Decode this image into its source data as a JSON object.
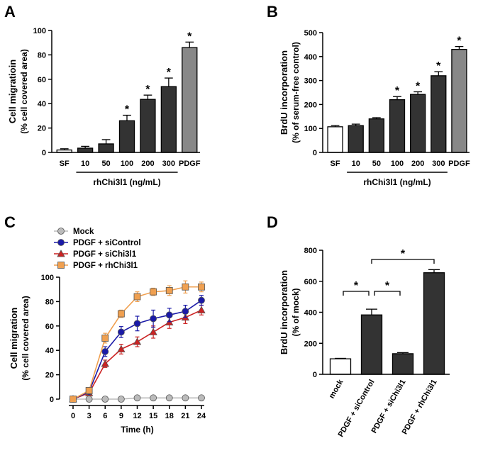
{
  "chart_data": [
    {
      "panel": "A",
      "type": "bar",
      "categories": [
        "SF",
        "10",
        "50",
        "100",
        "200",
        "300",
        "PDGF"
      ],
      "values": [
        2,
        3.5,
        7,
        26,
        43.5,
        54,
        86
      ],
      "errors": [
        1,
        1.5,
        3.5,
        4.5,
        3.5,
        7,
        4.5
      ],
      "bar_colors": [
        "#ffffff",
        "#333333",
        "#333333",
        "#333333",
        "#333333",
        "#333333",
        "#888888"
      ],
      "significant": [
        false,
        false,
        false,
        true,
        true,
        true,
        true
      ],
      "sig_marker": "*",
      "ylabel": "Cell migratioin",
      "ylabel_sub": "(% cell covered area)",
      "ylim": [
        0,
        100
      ],
      "yticks": [
        0,
        20,
        40,
        60,
        80,
        100
      ],
      "group_label": "rhChi3l1 (ng/mL)"
    },
    {
      "panel": "B",
      "type": "bar",
      "categories": [
        "SF",
        "10",
        "50",
        "100",
        "200",
        "300",
        "PDGF"
      ],
      "values": [
        107,
        112,
        140,
        220,
        242,
        320,
        430
      ],
      "errors": [
        5,
        6,
        5,
        13,
        11,
        17,
        12
      ],
      "bar_colors": [
        "#ffffff",
        "#333333",
        "#333333",
        "#333333",
        "#333333",
        "#333333",
        "#888888"
      ],
      "significant": [
        false,
        false,
        false,
        true,
        true,
        true,
        true
      ],
      "sig_marker": "*",
      "ylabel": "BrdU incorporation",
      "ylabel_sub": "(% of serum-free control)",
      "ylim": [
        0,
        500
      ],
      "yticks": [
        0,
        100,
        200,
        300,
        400,
        500
      ],
      "group_label": "rhChi3l1 (ng/mL)"
    },
    {
      "panel": "C",
      "type": "line",
      "x": [
        0,
        3,
        6,
        9,
        12,
        15,
        18,
        21,
        24
      ],
      "xticks": [
        0,
        3,
        6,
        9,
        12,
        15,
        18,
        21,
        24
      ],
      "xlabel": "Time (h)",
      "ylabel": "Cell migration",
      "ylabel_sub": "(% cell covered area)",
      "ylim": [
        0,
        100
      ],
      "yticks": [
        0,
        20,
        40,
        60,
        80,
        100
      ],
      "legend_position": "top-left",
      "series": [
        {
          "name": "Mock",
          "values": [
            0,
            0,
            0,
            0,
            1,
            1,
            1,
            1,
            1
          ],
          "errors": [
            0,
            0,
            0,
            0,
            0,
            0,
            0,
            0,
            0
          ],
          "color": "#bbbbbb",
          "marker": "circle"
        },
        {
          "name": "PDGF + siControl",
          "values": [
            0,
            6,
            39,
            55,
            62,
            66,
            69,
            72,
            81
          ],
          "errors": [
            0,
            1.5,
            4,
            4.5,
            6,
            7,
            5.5,
            5,
            4
          ],
          "color": "#1a1aa8",
          "marker": "circle"
        },
        {
          "name": "PDGF + siChi3l1",
          "values": [
            0,
            5,
            29,
            41,
            47,
            55,
            63,
            67,
            73
          ],
          "errors": [
            0,
            1,
            3,
            4,
            4,
            5,
            5,
            5,
            4
          ],
          "color": "#cc2222",
          "marker": "triangle"
        },
        {
          "name": "PDGF + rhChi3l1",
          "values": [
            0,
            7,
            50,
            70,
            84,
            88,
            89,
            92,
            92
          ],
          "errors": [
            0,
            2,
            4,
            3,
            4,
            3,
            4,
            5,
            4
          ],
          "color": "#f0a050",
          "marker": "square"
        }
      ]
    },
    {
      "panel": "D",
      "type": "bar",
      "categories": [
        "mock",
        "PDGF + siControl",
        "PDGF + siChi3l1",
        "PDGF + rhChi3l1"
      ],
      "values": [
        100,
        383,
        133,
        655
      ],
      "errors": [
        3,
        37,
        7,
        20
      ],
      "bar_colors": [
        "#ffffff",
        "#333333",
        "#333333",
        "#333333"
      ],
      "ylabel": "BrdU incorporation",
      "ylabel_sub": "(% of mock)",
      "ylim": [
        0,
        800
      ],
      "yticks": [
        0,
        200,
        400,
        600,
        800
      ],
      "sig_marker": "*",
      "comparisons": [
        {
          "from": "mock",
          "to": "PDGF + siControl"
        },
        {
          "from": "PDGF + siControl",
          "to": "PDGF + siChi3l1"
        },
        {
          "from": "PDGF + siControl",
          "to": "PDGF + rhChi3l1"
        }
      ]
    }
  ]
}
